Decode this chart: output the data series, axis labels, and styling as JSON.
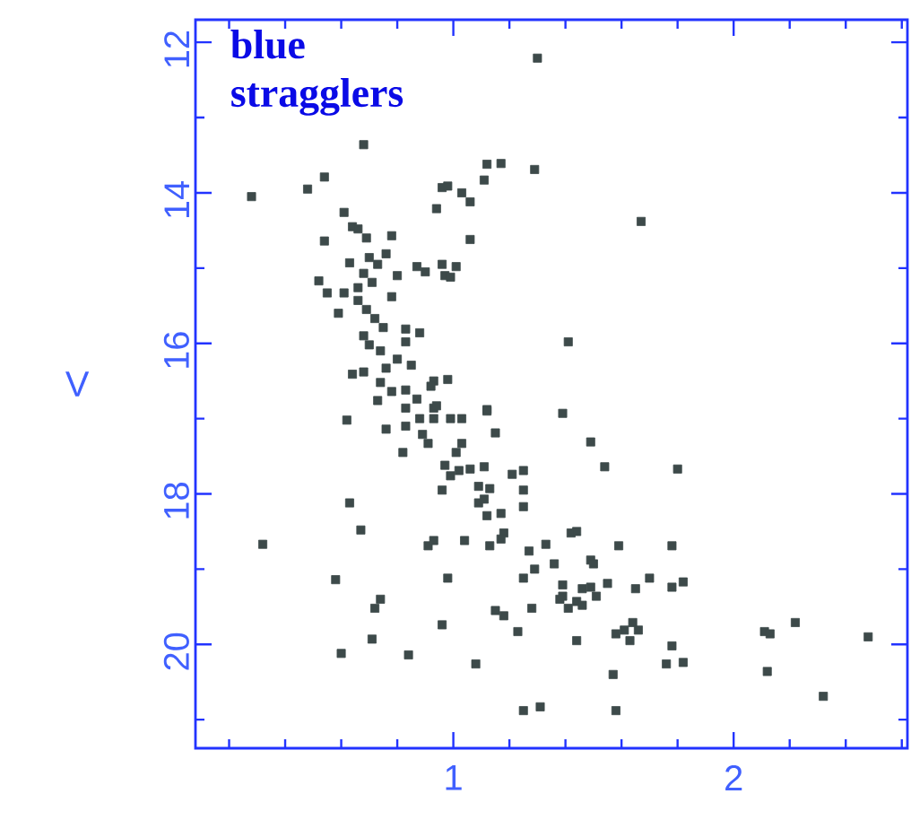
{
  "chart_data": {
    "type": "scatter",
    "ylabel": "V",
    "annotations": [
      "blue stragglers"
    ],
    "xlim": [
      0.08,
      2.62
    ],
    "ylim": [
      21.38,
      11.7
    ],
    "xticks": [
      {
        "value": 0.2,
        "label": null
      },
      {
        "value": 0.4,
        "label": null
      },
      {
        "value": 0.6,
        "label": null
      },
      {
        "value": 0.8,
        "label": null
      },
      1,
      {
        "value": 1.2,
        "label": null
      },
      {
        "value": 1.4,
        "label": null
      },
      {
        "value": 1.6,
        "label": null
      },
      {
        "value": 1.8,
        "label": null
      },
      2,
      {
        "value": 2.2,
        "label": null
      },
      {
        "value": 2.4,
        "label": null
      },
      {
        "value": 2.6,
        "label": null
      }
    ],
    "yticks": [
      12,
      {
        "value": 13,
        "label": null
      },
      14,
      {
        "value": 15,
        "label": null
      },
      16,
      {
        "value": 17,
        "label": null
      },
      18,
      {
        "value": 19,
        "label": null
      },
      20,
      {
        "value": 21,
        "label": null
      }
    ],
    "marker": "square",
    "series": [
      {
        "color": "#3d4a4a",
        "x": [
          1.3,
          0.68,
          0.28,
          0.48,
          0.54,
          1.12,
          1.17,
          1.29,
          1.11,
          0.96,
          0.98,
          1.03,
          1.06,
          0.94,
          0.61,
          0.64,
          0.66,
          0.69,
          0.78,
          0.54,
          1.06,
          0.76,
          0.63,
          0.7,
          0.73,
          0.68,
          0.87,
          0.9,
          0.96,
          1.01,
          0.97,
          0.99,
          0.8,
          0.52,
          0.55,
          0.61,
          0.66,
          0.71,
          0.78,
          0.66,
          0.59,
          0.69,
          0.72,
          0.75,
          0.83,
          0.88,
          0.68,
          0.7,
          0.74,
          0.83,
          0.8,
          0.85,
          0.64,
          0.68,
          0.76,
          0.93,
          0.98,
          0.74,
          0.83,
          0.87,
          0.93,
          0.73,
          1.12,
          0.92,
          0.78,
          0.94,
          0.62,
          0.83,
          0.88,
          0.93,
          0.99,
          1.03,
          1.12,
          0.76,
          0.83,
          0.89,
          0.91,
          1.15,
          1.03,
          0.82,
          1.01,
          0.97,
          1.02,
          1.06,
          1.11,
          0.99,
          1.25,
          1.21,
          0.96,
          1.09,
          1.13,
          1.25,
          0.63,
          1.09,
          1.11,
          1.25,
          1.12,
          1.17,
          0.67,
          0.32,
          0.91,
          0.93,
          1.04,
          1.13,
          1.18,
          1.17,
          1.27,
          1.29,
          1.33,
          0.58,
          0.98,
          1.25,
          0.74,
          0.72,
          0.96,
          1.15,
          1.18,
          1.28,
          0.71,
          1.23,
          0.6,
          0.84,
          1.08,
          1.25,
          1.31,
          1.67,
          1.41,
          1.39,
          1.49,
          1.54,
          1.8,
          1.42,
          1.44,
          1.59,
          1.78,
          1.36,
          1.49,
          1.5,
          1.39,
          1.39,
          1.46,
          1.49,
          1.51,
          1.55,
          1.65,
          1.7,
          1.78,
          1.82,
          1.38,
          1.44,
          1.41,
          1.46,
          1.61,
          1.58,
          1.64,
          1.66,
          1.63,
          1.44,
          1.78,
          1.76,
          1.82,
          1.57,
          1.58,
          2.11,
          2.13,
          2.22,
          2.48,
          2.12,
          2.32
        ],
        "values": [
          12.21,
          13.36,
          14.05,
          13.95,
          13.79,
          13.62,
          13.61,
          13.69,
          13.83,
          13.93,
          13.91,
          14.0,
          14.12,
          14.21,
          14.26,
          14.45,
          14.48,
          14.6,
          14.57,
          14.64,
          14.62,
          14.81,
          14.93,
          14.86,
          14.95,
          15.07,
          14.98,
          15.05,
          14.95,
          14.98,
          15.1,
          15.12,
          15.1,
          15.17,
          15.33,
          15.33,
          15.26,
          15.19,
          15.38,
          15.43,
          15.6,
          15.55,
          15.67,
          15.79,
          15.81,
          15.86,
          15.9,
          16.02,
          16.1,
          15.98,
          16.21,
          16.29,
          16.41,
          16.38,
          16.33,
          16.5,
          16.48,
          16.52,
          16.62,
          16.74,
          16.86,
          16.76,
          16.88,
          16.57,
          16.64,
          16.83,
          17.02,
          16.86,
          17.0,
          17.0,
          17.0,
          17.0,
          16.9,
          17.14,
          17.1,
          17.21,
          17.33,
          17.19,
          17.33,
          17.45,
          17.45,
          17.62,
          17.69,
          17.67,
          17.64,
          17.76,
          17.69,
          17.74,
          17.95,
          17.9,
          17.93,
          17.95,
          18.12,
          18.12,
          18.07,
          18.17,
          18.29,
          18.26,
          18.48,
          18.67,
          18.69,
          18.62,
          18.62,
          18.69,
          18.52,
          18.6,
          18.76,
          19.0,
          18.67,
          19.14,
          19.12,
          19.12,
          19.4,
          19.52,
          19.74,
          19.55,
          19.62,
          19.52,
          19.93,
          19.83,
          20.12,
          20.14,
          20.26,
          20.88,
          20.83,
          14.38,
          15.98,
          16.93,
          17.31,
          17.64,
          17.67,
          18.52,
          18.5,
          18.69,
          18.69,
          18.93,
          18.88,
          18.93,
          19.21,
          19.36,
          19.26,
          19.24,
          19.36,
          19.19,
          19.26,
          19.12,
          19.24,
          19.17,
          19.4,
          19.43,
          19.52,
          19.48,
          19.81,
          19.86,
          19.71,
          19.81,
          19.95,
          19.95,
          20.02,
          20.26,
          20.24,
          20.4,
          20.88,
          19.83,
          19.86,
          19.71,
          19.9,
          20.36,
          20.69
        ]
      }
    ]
  }
}
